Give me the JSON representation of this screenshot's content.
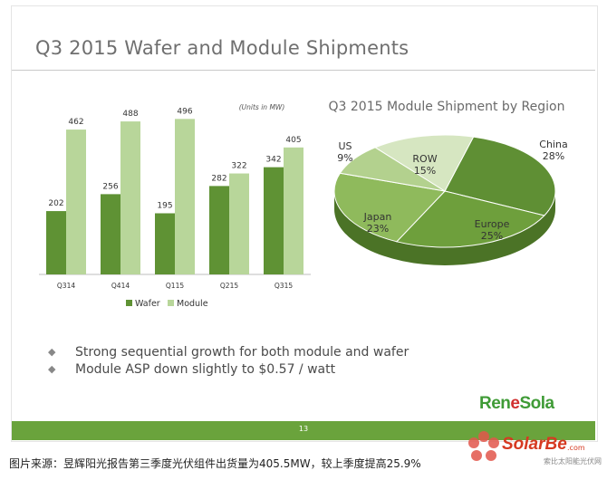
{
  "slide": {
    "title": "Q3 2015 Wafer and Module Shipments",
    "page_number": "13",
    "logo_pre": "Ren",
    "logo_o": "e",
    "logo_post": "Sola",
    "bullets": [
      "Strong sequential growth for both module and wafer",
      "Module ASP down slightly to $0.57 / watt"
    ]
  },
  "caption": "图片来源：昱辉阳光报告第三季度光伏组件出货量为405.5MW，较上季度提高25.9%",
  "watermark": {
    "brand": "SolarBe",
    "suffix": ".com",
    "sub": "索比太阳能光伏网"
  },
  "colors": {
    "wafer": "#5f9234",
    "module": "#b8d69a",
    "accent": "#6aa33c"
  },
  "chart_data": [
    {
      "type": "bar",
      "title": "",
      "units_note": "(Units in MW)",
      "categories": [
        "Q314",
        "Q414",
        "Q115",
        "Q215",
        "Q315"
      ],
      "series": [
        {
          "name": "Wafer",
          "values": [
            202,
            256,
            195,
            282,
            342
          ]
        },
        {
          "name": "Module",
          "values": [
            462,
            488,
            496,
            322,
            405
          ]
        }
      ],
      "ylim": [
        0,
        520
      ],
      "legend": "bottom"
    },
    {
      "type": "pie",
      "title": "Q3 2015 Module Shipment by Region",
      "slices": [
        {
          "label": "China",
          "value": 28,
          "display": "28%",
          "color": "#5f8f34"
        },
        {
          "label": "Europe",
          "value": 25,
          "display": "25%",
          "color": "#6e9f3c"
        },
        {
          "label": "Japan",
          "value": 23,
          "display": "23%",
          "color": "#8fba5c"
        },
        {
          "label": "US",
          "value": 9,
          "display": "9%",
          "color": "#b3d18e"
        },
        {
          "label": "ROW",
          "value": 15,
          "display": "15%",
          "color": "#d6e6c1"
        }
      ]
    }
  ]
}
